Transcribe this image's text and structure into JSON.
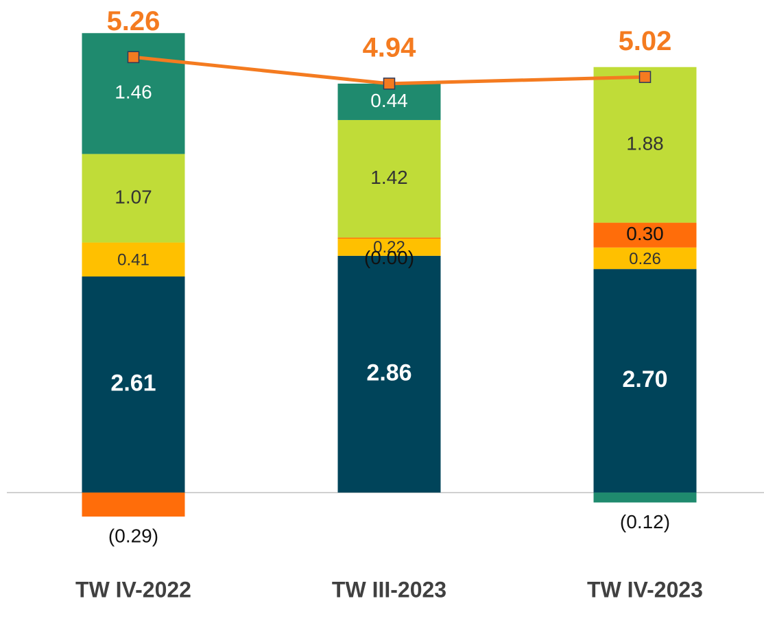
{
  "chart_data": {
    "type": "stacked-bar-line",
    "categories": [
      "TW IV-2022",
      "TW III-2023",
      "TW IV-2023"
    ],
    "ylim": [
      -1.6,
      5.95
    ],
    "series": [
      {
        "color": "#00445a",
        "values": [
          2.61,
          2.86,
          2.7
        ],
        "value_labels": [
          "2.61",
          "2.86",
          "2.70"
        ]
      },
      {
        "color": "#ffc000",
        "values": [
          0.41,
          0.22,
          0.26
        ],
        "value_labels": [
          "0.41",
          "0.22",
          "0.26"
        ]
      },
      {
        "color": "#ff6d0a",
        "values": [
          -0.29,
          0,
          0.3
        ],
        "value_labels": [
          "(0.29)",
          "(0.00)",
          "0.30"
        ]
      },
      {
        "color": "#c0dc38",
        "values": [
          1.07,
          1.42,
          1.88
        ],
        "value_labels": [
          "1.07",
          "1.42",
          "1.88"
        ]
      },
      {
        "color": "#1f8a6e",
        "values": [
          1.46,
          0.44,
          -0.12
        ],
        "value_labels": [
          "1.46",
          "0.44",
          "(0.12)"
        ]
      }
    ],
    "line": {
      "color": "#f47b20",
      "values": [
        5.26,
        4.94,
        5.02
      ]
    }
  }
}
